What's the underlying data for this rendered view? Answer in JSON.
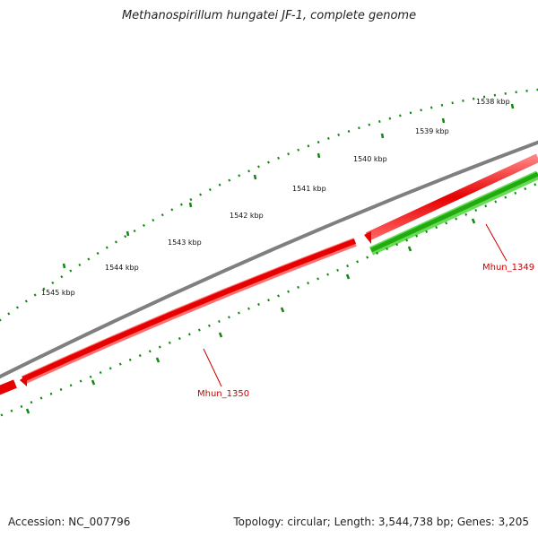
{
  "title": "Methanospirillum hungatei JF-1, complete genome",
  "footer": {
    "accession": "Accession: NC_007796",
    "summary": "Topology: circular; Length: 3,544,738 bp; Genes: 3,205"
  },
  "ticks": [
    {
      "label": "1538 kbp"
    },
    {
      "label": "1539 kbp"
    },
    {
      "label": "1540 kbp"
    },
    {
      "label": "1541 kbp"
    },
    {
      "label": "1542 kbp"
    },
    {
      "label": "1543 kbp"
    },
    {
      "label": "1544 kbp"
    },
    {
      "label": "1545 kbp"
    }
  ],
  "genes": [
    {
      "name": "Mhun_1349",
      "strand": "+"
    },
    {
      "name": "Mhun_1350",
      "strand": "-"
    }
  ],
  "colors": {
    "backbone": "#7f7f7f",
    "reverse_strand_gene": "#e60000",
    "forward_strand_gene": "#33bb22",
    "tick_marks": "#118811",
    "gene_label": "#cc0000"
  }
}
